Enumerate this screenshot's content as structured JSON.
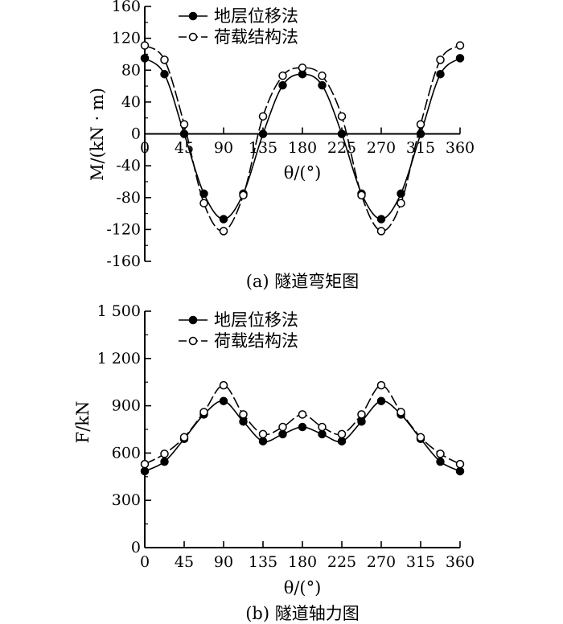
{
  "chart_data": [
    {
      "id": "moment",
      "type": "line",
      "caption": "(a) 隧道弯矩图",
      "xlabel": "θ/(°)",
      "ylabel": "M/(kN · m)",
      "xlim": [
        0,
        360
      ],
      "ylim": [
        -160,
        160
      ],
      "xticks": [
        0,
        45,
        90,
        135,
        180,
        225,
        270,
        315,
        360
      ],
      "xtick_labels": [
        "0",
        "45",
        "90",
        "135",
        "180",
        "225",
        "270",
        "315",
        "360"
      ],
      "yticks": [
        160,
        120,
        80,
        40,
        0,
        -40,
        -80,
        -120,
        -160
      ],
      "ytick_labels": [
        "160",
        "120",
        "80",
        "40",
        "0",
        "-40",
        "-80",
        "-120",
        "-160"
      ],
      "zero_line": true,
      "legend_position": "top-left",
      "series": [
        {
          "name": "地层位移法",
          "marker": "filled",
          "line": "solid",
          "x": [
            0,
            22.5,
            45,
            67.5,
            90,
            112.5,
            135,
            157.5,
            180,
            202.5,
            225,
            247.5,
            270,
            292.5,
            315,
            337.5,
            360
          ],
          "y": [
            95,
            75,
            0,
            -75,
            -107,
            -75,
            0,
            61,
            75,
            61,
            0,
            -75,
            -107,
            -75,
            0,
            75,
            95
          ]
        },
        {
          "name": "荷载结构法",
          "marker": "open",
          "line": "dashed",
          "x": [
            0,
            22.5,
            45,
            67.5,
            90,
            112.5,
            135,
            157.5,
            180,
            202.5,
            225,
            247.5,
            270,
            292.5,
            315,
            337.5,
            360
          ],
          "y": [
            111,
            93,
            12,
            -87,
            -122,
            -77,
            22,
            73,
            83,
            73,
            22,
            -77,
            -122,
            -87,
            12,
            93,
            111
          ]
        }
      ]
    },
    {
      "id": "axial",
      "type": "line",
      "caption": "(b) 隧道轴力图",
      "xlabel": "θ/(°)",
      "ylabel": "F/kN",
      "xlim": [
        0,
        360
      ],
      "ylim": [
        0,
        1500
      ],
      "xticks": [
        0,
        45,
        90,
        135,
        180,
        225,
        270,
        315,
        360
      ],
      "xtick_labels": [
        "0",
        "45",
        "90",
        "135",
        "180",
        "225",
        "270",
        "315",
        "360"
      ],
      "yticks": [
        1500,
        1200,
        900,
        600,
        300,
        0
      ],
      "ytick_labels": [
        "1 500",
        "1 200",
        "900",
        "600",
        "300",
        "0"
      ],
      "zero_line": false,
      "legend_position": "top-left",
      "series": [
        {
          "name": "地层位移法",
          "marker": "filled",
          "line": "solid",
          "x": [
            0,
            22.5,
            45,
            67.5,
            90,
            112.5,
            135,
            157.5,
            180,
            202.5,
            225,
            247.5,
            270,
            292.5,
            315,
            337.5,
            360
          ],
          "y": [
            485,
            545,
            690,
            845,
            930,
            800,
            675,
            720,
            765,
            720,
            675,
            800,
            930,
            845,
            690,
            545,
            485
          ]
        },
        {
          "name": "荷载结构法",
          "marker": "open",
          "line": "dashed",
          "x": [
            0,
            22.5,
            45,
            67.5,
            90,
            112.5,
            135,
            157.5,
            180,
            202.5,
            225,
            247.5,
            270,
            292.5,
            315,
            337.5,
            360
          ],
          "y": [
            530,
            595,
            700,
            860,
            1030,
            845,
            720,
            765,
            845,
            765,
            720,
            845,
            1030,
            860,
            700,
            595,
            530
          ]
        }
      ]
    }
  ]
}
